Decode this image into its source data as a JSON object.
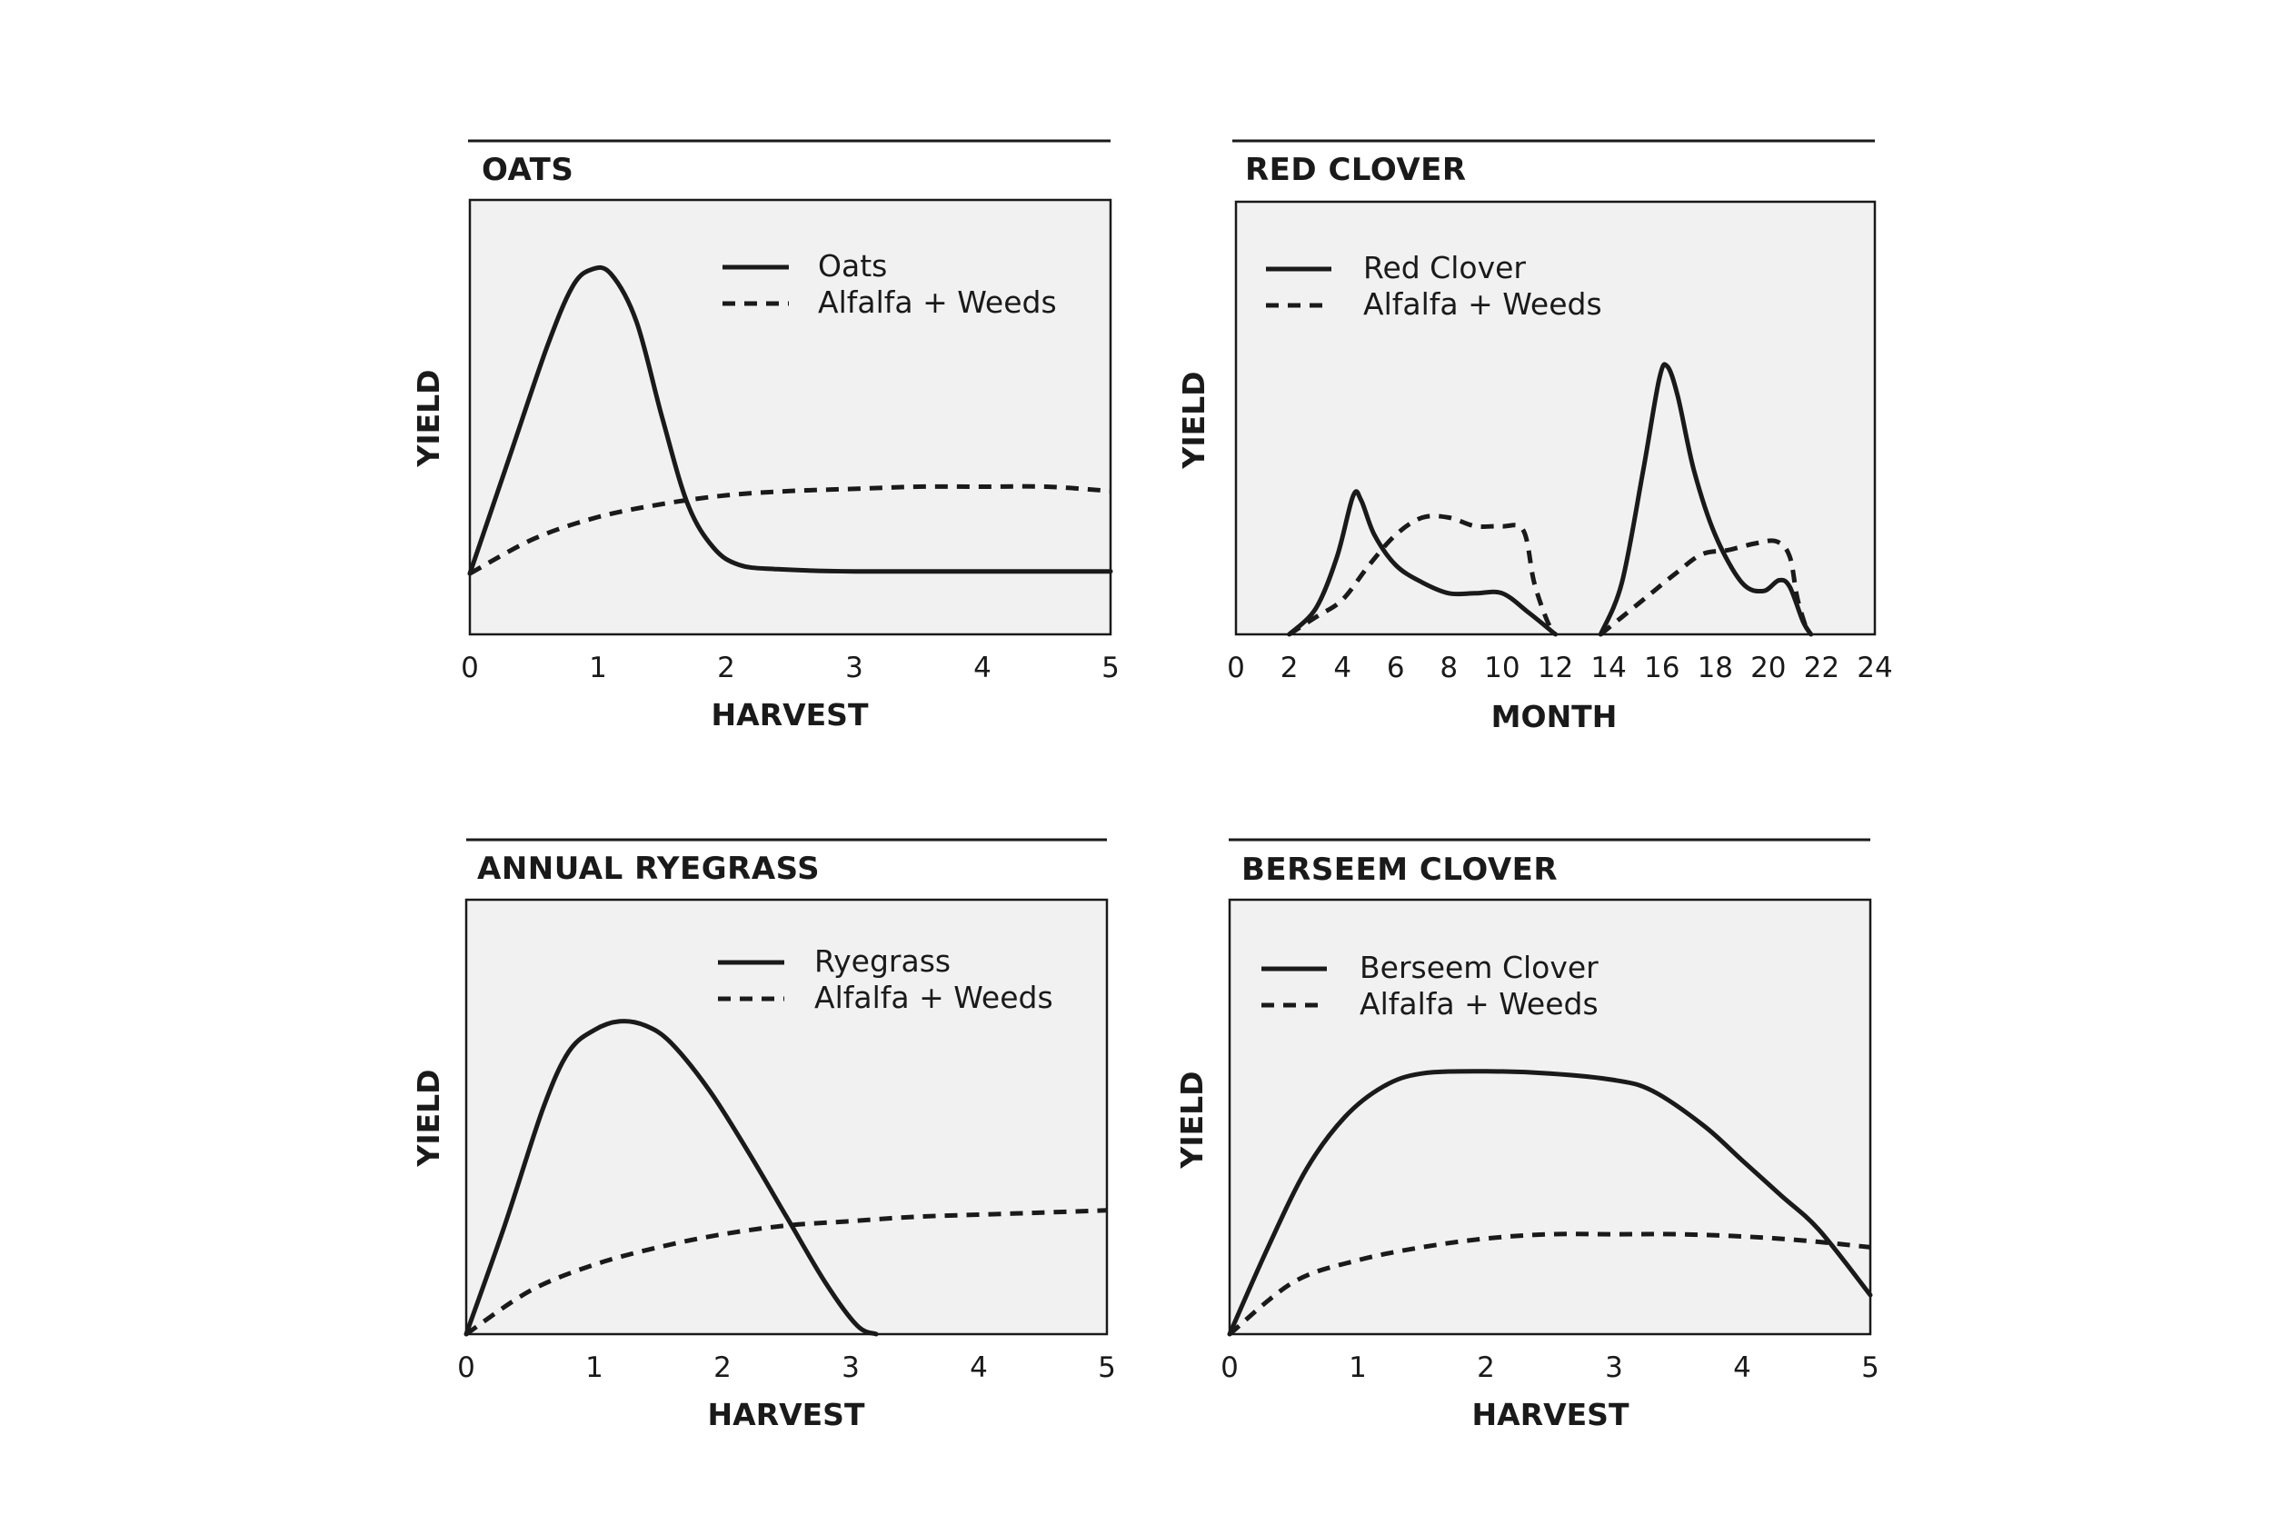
{
  "chart_data": [
    {
      "type": "line",
      "title": "OATS",
      "xlabel": "HARVEST",
      "ylabel": "YIELD",
      "xlim": [
        0,
        5
      ],
      "ylim": [
        0,
        10
      ],
      "xticks": [
        "0",
        "1",
        "2",
        "3",
        "4",
        "5"
      ],
      "xtick_values": [
        0,
        1,
        2,
        3,
        4,
        5
      ],
      "legend_position": "top-right",
      "series": [
        {
          "name": "Oats",
          "style": "solid",
          "points": [
            [
              0,
              1.4
            ],
            [
              0.3,
              4.0
            ],
            [
              0.6,
              6.6
            ],
            [
              0.8,
              8.0
            ],
            [
              0.95,
              8.4
            ],
            [
              1.1,
              8.3
            ],
            [
              1.3,
              7.2
            ],
            [
              1.5,
              5.0
            ],
            [
              1.7,
              3.0
            ],
            [
              1.9,
              2.0
            ],
            [
              2.1,
              1.6
            ],
            [
              2.4,
              1.5
            ],
            [
              3.0,
              1.45
            ],
            [
              4.0,
              1.45
            ],
            [
              5.0,
              1.45
            ]
          ]
        },
        {
          "name": "Alfalfa + Weeds",
          "style": "dashed",
          "points": [
            [
              0,
              1.4
            ],
            [
              0.5,
              2.2
            ],
            [
              1.0,
              2.7
            ],
            [
              1.5,
              3.0
            ],
            [
              2.0,
              3.2
            ],
            [
              2.5,
              3.3
            ],
            [
              3.0,
              3.35
            ],
            [
              3.5,
              3.4
            ],
            [
              4.0,
              3.4
            ],
            [
              4.5,
              3.4
            ],
            [
              5.0,
              3.3
            ]
          ]
        }
      ]
    },
    {
      "type": "line",
      "title": "RED CLOVER",
      "xlabel": "MONTH",
      "ylabel": "YIELD",
      "xlim": [
        0,
        24
      ],
      "ylim": [
        0,
        10
      ],
      "xticks": [
        "0",
        "2",
        "4",
        "6",
        "8",
        "10",
        "12",
        "14",
        "16",
        "18",
        "20",
        "22",
        "24"
      ],
      "xtick_values": [
        0,
        2,
        4,
        6,
        8,
        10,
        12,
        14,
        16,
        18,
        20,
        22,
        24
      ],
      "legend_position": "top-left",
      "series": [
        {
          "name": "Red Clover",
          "segments": [
            [
              [
                2,
                0
              ],
              [
                3,
                0.6
              ],
              [
                3.8,
                1.8
              ],
              [
                4.4,
                3.2
              ],
              [
                4.7,
                3.1
              ],
              [
                5.2,
                2.3
              ],
              [
                6,
                1.6
              ],
              [
                7,
                1.2
              ],
              [
                8,
                0.95
              ],
              [
                9,
                0.95
              ],
              [
                10,
                0.95
              ],
              [
                11,
                0.5
              ],
              [
                12,
                0
              ]
            ],
            [
              [
                13.7,
                0
              ],
              [
                14.5,
                1.2
              ],
              [
                15.3,
                3.8
              ],
              [
                15.9,
                5.9
              ],
              [
                16.2,
                6.2
              ],
              [
                16.6,
                5.5
              ],
              [
                17.2,
                3.8
              ],
              [
                18,
                2.3
              ],
              [
                19,
                1.2
              ],
              [
                19.8,
                1.0
              ],
              [
                20.4,
                1.25
              ],
              [
                20.8,
                1.1
              ],
              [
                21.3,
                0.3
              ],
              [
                21.6,
                0
              ]
            ]
          ],
          "style": "solid"
        },
        {
          "name": "Alfalfa + Weeds",
          "style": "dashed",
          "segments": [
            [
              [
                2,
                0
              ],
              [
                3,
                0.4
              ],
              [
                4,
                0.8
              ],
              [
                5,
                1.6
              ],
              [
                6,
                2.3
              ],
              [
                7,
                2.7
              ],
              [
                8,
                2.7
              ],
              [
                9,
                2.5
              ],
              [
                10,
                2.5
              ],
              [
                10.8,
                2.4
              ],
              [
                11.2,
                1.2
              ],
              [
                11.7,
                0.3
              ],
              [
                12,
                0
              ]
            ],
            [
              [
                13.7,
                0
              ],
              [
                14.5,
                0.4
              ],
              [
                15.5,
                0.9
              ],
              [
                16.5,
                1.4
              ],
              [
                17.5,
                1.85
              ],
              [
                18.5,
                1.95
              ],
              [
                19.5,
                2.1
              ],
              [
                20.3,
                2.15
              ],
              [
                20.8,
                1.8
              ],
              [
                21.1,
                0.8
              ],
              [
                21.5,
                0
              ]
            ]
          ]
        }
      ]
    },
    {
      "type": "line",
      "title": "ANNUAL RYEGRASS",
      "xlabel": "HARVEST",
      "ylabel": "YIELD",
      "xlim": [
        0,
        5
      ],
      "ylim": [
        0,
        10
      ],
      "xticks": [
        "0",
        "1",
        "2",
        "3",
        "4",
        "5"
      ],
      "xtick_values": [
        0,
        1,
        2,
        3,
        4,
        5
      ],
      "legend_position": "top-right",
      "series": [
        {
          "name": "Ryegrass",
          "style": "solid",
          "points": [
            [
              0,
              0
            ],
            [
              0.3,
              2.5
            ],
            [
              0.6,
              5.2
            ],
            [
              0.8,
              6.5
            ],
            [
              1.0,
              7.0
            ],
            [
              1.2,
              7.2
            ],
            [
              1.4,
              7.1
            ],
            [
              1.6,
              6.7
            ],
            [
              1.9,
              5.6
            ],
            [
              2.2,
              4.2
            ],
            [
              2.5,
              2.7
            ],
            [
              2.8,
              1.2
            ],
            [
              3.05,
              0.2
            ],
            [
              3.2,
              0
            ]
          ]
        },
        {
          "name": "Alfalfa + Weeds",
          "style": "dashed",
          "points": [
            [
              0,
              0
            ],
            [
              0.5,
              1.0
            ],
            [
              1.0,
              1.6
            ],
            [
              1.5,
              2.0
            ],
            [
              2.0,
              2.3
            ],
            [
              2.5,
              2.5
            ],
            [
              3.0,
              2.6
            ],
            [
              3.5,
              2.7
            ],
            [
              4.0,
              2.75
            ],
            [
              4.5,
              2.8
            ],
            [
              5.0,
              2.85
            ]
          ]
        }
      ]
    },
    {
      "type": "line",
      "title": "BERSEEM CLOVER",
      "xlabel": "HARVEST",
      "ylabel": "YIELD",
      "xlim": [
        0,
        5
      ],
      "ylim": [
        0,
        10
      ],
      "xticks": [
        "0",
        "1",
        "2",
        "3",
        "4",
        "5"
      ],
      "xtick_values": [
        0,
        1,
        2,
        3,
        4,
        5
      ],
      "legend_position": "top-left",
      "series": [
        {
          "name": "Berseem Clover",
          "style": "solid",
          "points": [
            [
              0,
              0
            ],
            [
              0.3,
              2.0
            ],
            [
              0.6,
              3.8
            ],
            [
              0.9,
              5.0
            ],
            [
              1.2,
              5.7
            ],
            [
              1.5,
              6.0
            ],
            [
              2.0,
              6.05
            ],
            [
              2.5,
              6.0
            ],
            [
              3.0,
              5.85
            ],
            [
              3.3,
              5.6
            ],
            [
              3.7,
              4.8
            ],
            [
              4.0,
              4.0
            ],
            [
              4.3,
              3.2
            ],
            [
              4.6,
              2.4
            ],
            [
              5.0,
              0.9
            ]
          ]
        },
        {
          "name": "Alfalfa + Weeds",
          "style": "dashed",
          "points": [
            [
              0,
              0
            ],
            [
              0.5,
              1.2
            ],
            [
              1.0,
              1.7
            ],
            [
              1.5,
              2.0
            ],
            [
              2.0,
              2.2
            ],
            [
              2.5,
              2.3
            ],
            [
              3.0,
              2.3
            ],
            [
              3.5,
              2.3
            ],
            [
              4.0,
              2.25
            ],
            [
              4.5,
              2.15
            ],
            [
              5.0,
              2.0
            ]
          ]
        }
      ]
    }
  ]
}
